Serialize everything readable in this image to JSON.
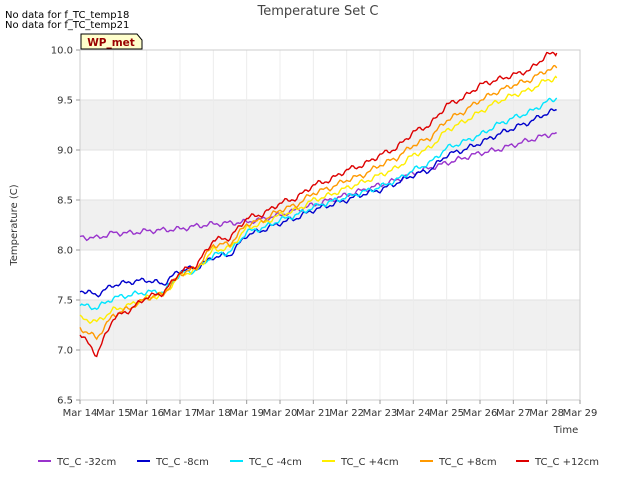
{
  "notes": [
    "No data for f_TC_temp18",
    "No data for f_TC_temp21"
  ],
  "badge": "WP_met",
  "chart_data": {
    "type": "line",
    "title": "Temperature Set C",
    "xlabel": "Time",
    "ylabel": "Temperature (C)",
    "ylim": [
      6.5,
      10.0
    ],
    "yticks": [
      "6.5",
      "7.0",
      "7.5",
      "8.0",
      "8.5",
      "9.0",
      "9.5",
      "10.0"
    ],
    "xlim": [
      14,
      29
    ],
    "xticks": [
      "Mar 14",
      "Mar 15",
      "Mar 16",
      "Mar 17",
      "Mar 18",
      "Mar 19",
      "Mar 20",
      "Mar 21",
      "Mar 22",
      "Mar 23",
      "Mar 24",
      "Mar 25",
      "Mar 26",
      "Mar 27",
      "Mar 28",
      "Mar 29"
    ],
    "grid": "alternating horizontal bands",
    "legend_position": "bottom",
    "x": [
      14.0,
      14.5,
      15.0,
      15.5,
      16.0,
      16.5,
      17.0,
      17.5,
      18.0,
      18.5,
      19.0,
      19.5,
      20.0,
      20.5,
      21.0,
      21.5,
      22.0,
      22.5,
      23.0,
      23.5,
      24.0,
      24.5,
      25.0,
      25.5,
      26.0,
      26.5,
      27.0,
      27.5,
      28.0,
      28.3
    ],
    "series": [
      {
        "name": "TC_C -32cm",
        "color": "#9933cc",
        "values": [
          8.13,
          8.12,
          8.17,
          8.17,
          8.19,
          8.2,
          8.21,
          8.24,
          8.26,
          8.27,
          8.28,
          8.31,
          8.35,
          8.4,
          8.45,
          8.5,
          8.55,
          8.6,
          8.65,
          8.7,
          8.77,
          8.82,
          8.87,
          8.92,
          8.97,
          9.0,
          9.05,
          9.1,
          9.15,
          9.17
        ]
      },
      {
        "name": "TC_C -8cm",
        "color": "#0000cc",
        "values": [
          7.6,
          7.55,
          7.65,
          7.68,
          7.7,
          7.66,
          7.8,
          7.82,
          7.93,
          7.95,
          8.15,
          8.2,
          8.27,
          8.32,
          8.4,
          8.45,
          8.5,
          8.56,
          8.6,
          8.67,
          8.75,
          8.8,
          8.95,
          9.0,
          9.07,
          9.15,
          9.22,
          9.28,
          9.37,
          9.4
        ]
      },
      {
        "name": "TC_C -4cm",
        "color": "#00e5ff",
        "values": [
          7.45,
          7.42,
          7.52,
          7.55,
          7.58,
          7.58,
          7.76,
          7.8,
          7.95,
          7.98,
          8.18,
          8.22,
          8.3,
          8.35,
          8.43,
          8.48,
          8.53,
          8.58,
          8.63,
          8.7,
          8.8,
          8.87,
          9.02,
          9.08,
          9.15,
          9.25,
          9.32,
          9.38,
          9.48,
          9.52
        ]
      },
      {
        "name": "TC_C +4cm",
        "color": "#ffee00",
        "values": [
          7.32,
          7.28,
          7.4,
          7.45,
          7.52,
          7.55,
          7.75,
          7.8,
          8.0,
          8.02,
          8.22,
          8.27,
          8.35,
          8.4,
          8.5,
          8.55,
          8.62,
          8.68,
          8.75,
          8.82,
          8.95,
          9.02,
          9.2,
          9.28,
          9.38,
          9.48,
          9.55,
          9.6,
          9.7,
          9.72
        ]
      },
      {
        "name": "TC_C +8cm",
        "color": "#ff9900",
        "values": [
          7.22,
          7.12,
          7.35,
          7.42,
          7.52,
          7.56,
          7.76,
          7.82,
          8.05,
          8.06,
          8.26,
          8.3,
          8.4,
          8.45,
          8.57,
          8.62,
          8.7,
          8.75,
          8.85,
          8.92,
          9.05,
          9.12,
          9.3,
          9.38,
          9.5,
          9.58,
          9.65,
          9.7,
          9.8,
          9.82
        ]
      },
      {
        "name": "TC_C +12cm",
        "color": "#dd0000",
        "values": [
          7.17,
          6.95,
          7.32,
          7.4,
          7.53,
          7.57,
          7.78,
          7.85,
          8.1,
          8.12,
          8.32,
          8.36,
          8.47,
          8.52,
          8.65,
          8.7,
          8.8,
          8.85,
          8.95,
          9.02,
          9.18,
          9.25,
          9.45,
          9.52,
          9.65,
          9.7,
          9.75,
          9.8,
          9.95,
          9.97
        ]
      }
    ]
  }
}
